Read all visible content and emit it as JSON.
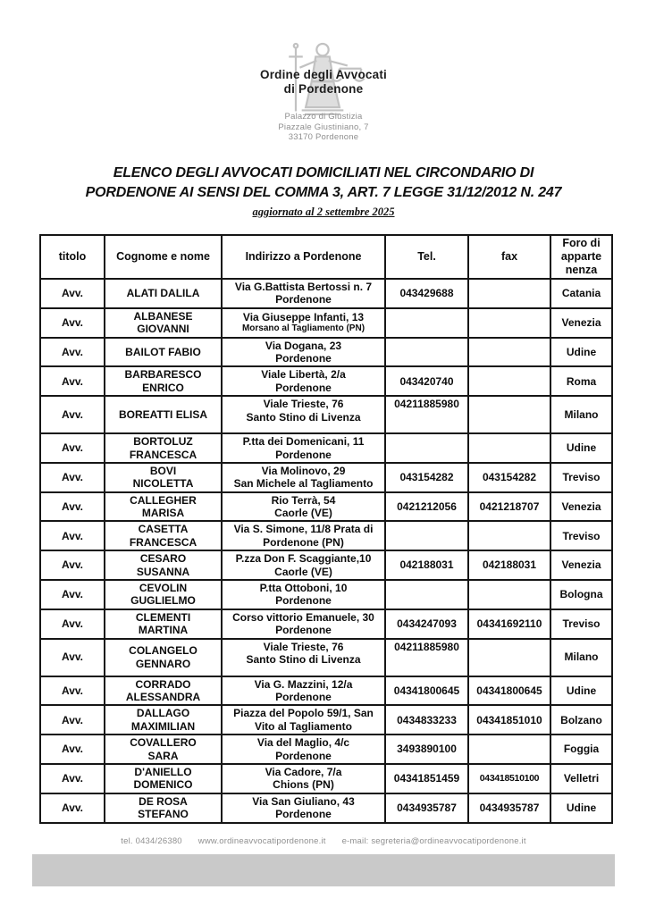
{
  "logo": {
    "org_name_lines": [
      "Ordine degli Avvocati",
      "di Pordenone"
    ],
    "address_lines": [
      "Palazzo di Giustizia",
      "Piazzale Giustiniano, 7",
      "33170 Pordenone"
    ]
  },
  "title": {
    "line1": "ELENCO DEGLI AVVOCATI DOMICILIATI NEL CIRCONDARIO DI",
    "line2": "PORDENONE AI SENSI DEL COMMA 3, ART. 7 LEGGE 31/12/2012 N. 247",
    "updated": "aggiornato al 2 settembre 2025"
  },
  "table": {
    "headers": {
      "titolo": "titolo",
      "nome": "Cognome e nome",
      "indirizzo": "Indirizzo a Pordenone",
      "tel": "Tel.",
      "fax": "fax",
      "foro": [
        "Foro di",
        "apparte",
        "nenza"
      ]
    },
    "rows": [
      {
        "titolo": "Avv.",
        "nome": [
          "ALATI DALILA"
        ],
        "indirizzo": [
          "Via G.Battista Bertossi n. 7",
          "Pordenone"
        ],
        "tel": "043429688",
        "fax": "",
        "foro": "Catania"
      },
      {
        "titolo": "Avv.",
        "nome": [
          "ALBANESE",
          "GIOVANNI"
        ],
        "indirizzo": [
          "Via Giuseppe Infanti, 13",
          "Morsano al Tagliamento (PN)"
        ],
        "addr2_small": true,
        "tel": "",
        "fax": "",
        "foro": "Venezia"
      },
      {
        "titolo": "Avv.",
        "nome": [
          "BAILOT FABIO"
        ],
        "indirizzo": [
          "Via Dogana, 23",
          "Pordenone"
        ],
        "tel": "",
        "fax": "",
        "foro": "Udine"
      },
      {
        "titolo": "Avv.",
        "nome": [
          "BARBARESCO",
          "ENRICO"
        ],
        "indirizzo": [
          "Viale Libertà, 2/a",
          "Pordenone"
        ],
        "tel": "043420740",
        "fax": "",
        "foro": "Roma"
      },
      {
        "titolo": "Avv.",
        "nome": [
          "BOREATTI ELISA"
        ],
        "indirizzo": [
          "Viale Trieste, 76",
          "Santo Stino di Livenza"
        ],
        "tel": "04211885980",
        "fax": "",
        "foro": "Milano",
        "tall": true
      },
      {
        "titolo": "Avv.",
        "nome": [
          "BORTOLUZ",
          "FRANCESCA"
        ],
        "indirizzo": [
          "P.tta dei Domenicani, 11",
          "Pordenone"
        ],
        "tel": "",
        "fax": "",
        "foro": "Udine"
      },
      {
        "titolo": "Avv.",
        "nome": [
          "BOVI",
          "NICOLETTA"
        ],
        "indirizzo": [
          "Via Molinovo, 29",
          "San Michele al Tagliamento"
        ],
        "tel": "043154282",
        "fax": "043154282",
        "foro": "Treviso"
      },
      {
        "titolo": "Avv.",
        "nome": [
          "CALLEGHER",
          "MARISA"
        ],
        "indirizzo": [
          "Rio Terrà, 54",
          "Caorle (VE)"
        ],
        "tel": "0421212056",
        "fax": "0421218707",
        "foro": "Venezia"
      },
      {
        "titolo": "Avv.",
        "nome": [
          "CASETTA",
          "FRANCESCA"
        ],
        "indirizzo": [
          "Via S. Simone, 11/8 Prata di",
          "Pordenone (PN)"
        ],
        "tel": "",
        "fax": "",
        "foro": "Treviso"
      },
      {
        "titolo": "Avv.",
        "nome": [
          "CESARO",
          "SUSANNA"
        ],
        "indirizzo": [
          "P.zza Don F. Scaggiante,10",
          "Caorle (VE)"
        ],
        "tel": "042188031",
        "fax": "042188031",
        "foro": "Venezia"
      },
      {
        "titolo": "Avv.",
        "nome": [
          "CEVOLIN",
          "GUGLIELMO"
        ],
        "indirizzo": [
          "P.tta Ottoboni, 10",
          "Pordenone"
        ],
        "tel": "",
        "fax": "",
        "foro": "Bologna"
      },
      {
        "titolo": "Avv.",
        "nome": [
          "CLEMENTI",
          "MARTINA"
        ],
        "indirizzo": [
          "Corso vittorio Emanuele, 30",
          "Pordenone"
        ],
        "tel": "0434247093",
        "fax": "04341692110",
        "foro": "Treviso"
      },
      {
        "titolo": "Avv.",
        "nome": [
          "COLANGELO",
          "GENNARO"
        ],
        "indirizzo": [
          "Viale Trieste, 76",
          "Santo Stino di Livenza"
        ],
        "tel": "04211885980",
        "fax": "",
        "foro": "Milano",
        "tall": true
      },
      {
        "titolo": "Avv.",
        "nome": [
          "CORRADO",
          "ALESSANDRA"
        ],
        "indirizzo": [
          "Via G. Mazzini, 12/a",
          "Pordenone"
        ],
        "tel": "04341800645",
        "fax": "04341800645",
        "foro": "Udine"
      },
      {
        "titolo": "Avv.",
        "nome": [
          "DALLAGO",
          "MAXIMILIAN"
        ],
        "indirizzo": [
          "Piazza del Popolo 59/1, San",
          "Vito al Tagliamento"
        ],
        "tel": "0434833233",
        "fax": "04341851010",
        "foro": "Bolzano"
      },
      {
        "titolo": "Avv.",
        "nome": [
          "COVALLERO",
          "SARA"
        ],
        "indirizzo": [
          "Via del Maglio, 4/c",
          "Pordenone"
        ],
        "tel": "3493890100",
        "fax": "",
        "foro": "Foggia"
      },
      {
        "titolo": "Avv.",
        "nome": [
          "D'ANIELLO",
          "DOMENICO"
        ],
        "indirizzo": [
          "Via Cadore, 7/a",
          "Chions (PN)"
        ],
        "tel": "04341851459",
        "fax": "043418510100",
        "fax_small": true,
        "foro": "Velletri"
      },
      {
        "titolo": "Avv.",
        "nome": [
          "DE ROSA",
          "STEFANO"
        ],
        "indirizzo": [
          "Via San Giuliano, 43",
          "Pordenone"
        ],
        "tel": "0434935787",
        "fax": "0434935787",
        "foro": "Udine"
      }
    ]
  },
  "footer": {
    "tel": "tel. 0434/26380",
    "website": "www.ordineavvocatipordenone.it",
    "email": "e-mail: segreteria@ordineavvocatipordenone.it"
  },
  "colors": {
    "footer_bar": "#c9c9c9",
    "muted_text": "#8f8f8f",
    "table_border": "#161616"
  }
}
